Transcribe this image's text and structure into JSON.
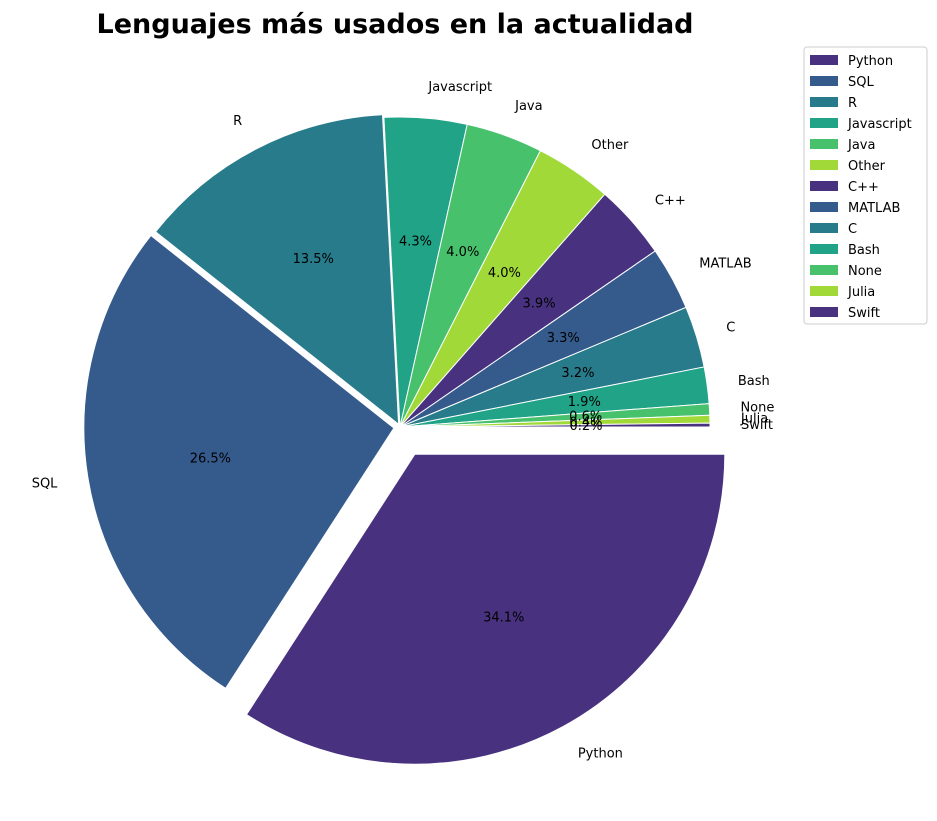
{
  "chart_data": {
    "type": "pie",
    "title": "Lenguajes más usados en la actualidad",
    "slices": [
      {
        "label": "Python",
        "value": 34.1,
        "pct_label": "34.1%",
        "color": "#48327f",
        "explode": 0.1
      },
      {
        "label": " SQL",
        "value": 26.5,
        "pct_label": "26.5%",
        "color": "#355a8c",
        "explode": 0.02
      },
      {
        "label": " R",
        "value": 13.5,
        "pct_label": "13.5%",
        "color": "#277b8a",
        "explode": 0.01
      },
      {
        "label": " Javascript",
        "value": 4.3,
        "pct_label": "4.3%",
        "color": "#20a386",
        "explode": 0
      },
      {
        "label": " Java",
        "value": 4.0,
        "pct_label": "4.0%",
        "color": "#48c16d",
        "explode": 0
      },
      {
        "label": " Other",
        "value": 4.0,
        "pct_label": "4.0%",
        "color": "#a1da38",
        "explode": 0
      },
      {
        "label": " C++",
        "value": 3.9,
        "pct_label": "3.9%",
        "color": "#48327f",
        "explode": 0
      },
      {
        "label": " MATLAB",
        "value": 3.3,
        "pct_label": "3.3%",
        "color": "#355a8c",
        "explode": 0
      },
      {
        "label": " C",
        "value": 3.2,
        "pct_label": "3.2%",
        "color": "#277b8a",
        "explode": 0
      },
      {
        "label": " Bash",
        "value": 1.9,
        "pct_label": "1.9%",
        "color": "#20a386",
        "explode": 0
      },
      {
        "label": " None",
        "value": 0.6,
        "pct_label": "0.6%",
        "color": "#48c16d",
        "explode": 0
      },
      {
        "label": " Julia",
        "value": 0.4,
        "pct_label": "0.4%",
        "color": "#a1da38",
        "explode": 0
      },
      {
        "label": " Swift",
        "value": 0.2,
        "pct_label": "0.2%",
        "color": "#48327f",
        "explode": 0
      }
    ],
    "start_angle": 0,
    "direction": "clockwise",
    "legend_position": "top-right"
  }
}
